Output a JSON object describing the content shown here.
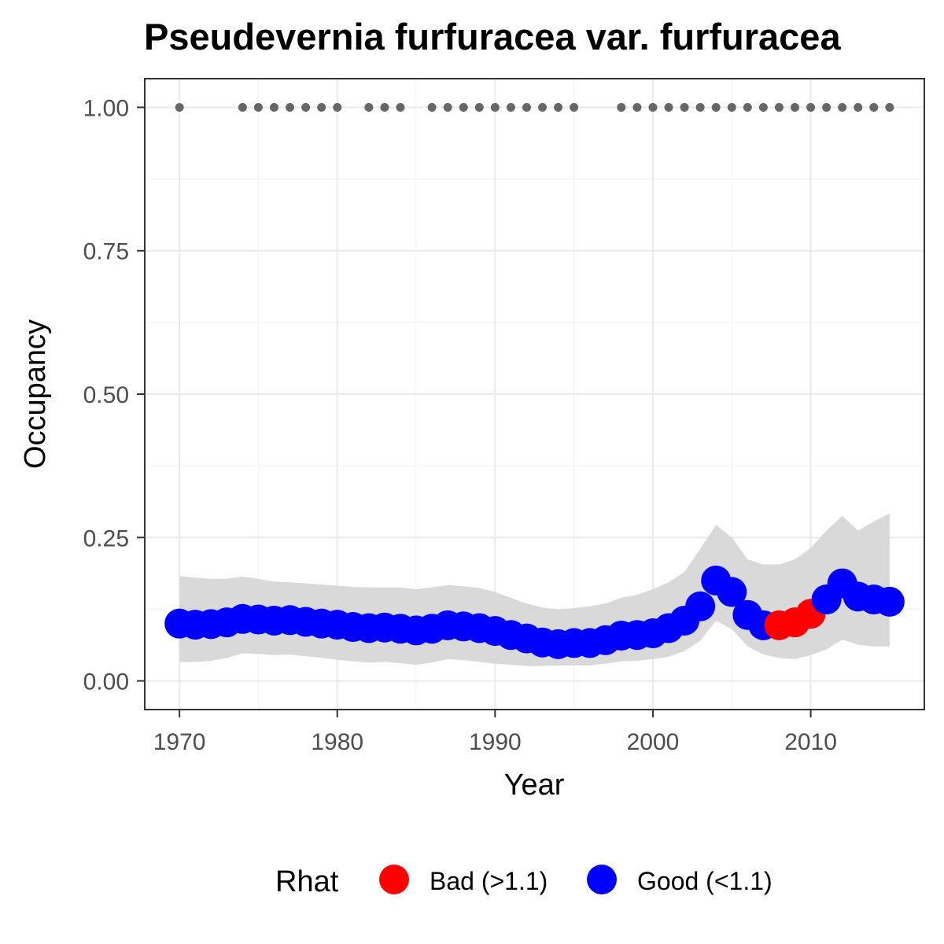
{
  "chart_data": {
    "type": "scatter",
    "title": "Pseudevernia furfuracea var. furfuracea",
    "xlabel": "Year",
    "ylabel": "Occupancy",
    "xlim": [
      1967.8,
      2017.2
    ],
    "ylim": [
      -0.05,
      1.05
    ],
    "x_ticks": [
      1970,
      1980,
      1990,
      2000,
      2010
    ],
    "y_ticks": [
      0.0,
      0.25,
      0.5,
      0.75,
      1.0
    ],
    "y_tick_labels": [
      "0.00",
      "0.25",
      "0.50",
      "0.75",
      "1.00"
    ],
    "grid": true,
    "legend": {
      "title": "Rhat",
      "position": "bottom",
      "items": [
        {
          "label": "Bad (>1.1)",
          "color": "#ff0000"
        },
        {
          "label": "Good (<1.1)",
          "color": "#0000ff"
        }
      ]
    },
    "series": [
      {
        "name": "Occupancy",
        "x": [
          1970,
          1971,
          1972,
          1973,
          1974,
          1975,
          1976,
          1977,
          1978,
          1979,
          1980,
          1981,
          1982,
          1983,
          1984,
          1985,
          1986,
          1987,
          1988,
          1989,
          1990,
          1991,
          1992,
          1993,
          1994,
          1995,
          1996,
          1997,
          1998,
          1999,
          2000,
          2001,
          2002,
          2003,
          2004,
          2005,
          2006,
          2007,
          2008,
          2009,
          2010,
          2011,
          2012,
          2013,
          2014,
          2015
        ],
        "y": [
          0.1,
          0.098,
          0.099,
          0.102,
          0.108,
          0.107,
          0.105,
          0.106,
          0.103,
          0.1,
          0.098,
          0.094,
          0.092,
          0.093,
          0.091,
          0.088,
          0.091,
          0.097,
          0.095,
          0.092,
          0.087,
          0.08,
          0.074,
          0.067,
          0.064,
          0.066,
          0.066,
          0.071,
          0.079,
          0.08,
          0.083,
          0.092,
          0.105,
          0.13,
          0.175,
          0.155,
          0.115,
          0.097,
          0.097,
          0.102,
          0.117,
          0.142,
          0.17,
          0.147,
          0.142,
          0.138
        ],
        "lower": [
          0.033,
          0.033,
          0.035,
          0.04,
          0.048,
          0.047,
          0.045,
          0.046,
          0.043,
          0.04,
          0.037,
          0.034,
          0.032,
          0.033,
          0.031,
          0.028,
          0.032,
          0.038,
          0.036,
          0.033,
          0.03,
          0.028,
          0.026,
          0.026,
          0.027,
          0.027,
          0.027,
          0.03,
          0.034,
          0.035,
          0.038,
          0.042,
          0.052,
          0.07,
          0.105,
          0.09,
          0.06,
          0.046,
          0.04,
          0.038,
          0.045,
          0.055,
          0.072,
          0.063,
          0.06,
          0.06
        ],
        "upper": [
          0.183,
          0.18,
          0.178,
          0.178,
          0.182,
          0.178,
          0.173,
          0.172,
          0.17,
          0.168,
          0.166,
          0.164,
          0.163,
          0.163,
          0.163,
          0.16,
          0.163,
          0.167,
          0.165,
          0.162,
          0.155,
          0.145,
          0.135,
          0.128,
          0.125,
          0.127,
          0.13,
          0.135,
          0.145,
          0.15,
          0.16,
          0.172,
          0.19,
          0.23,
          0.272,
          0.25,
          0.212,
          0.203,
          0.203,
          0.212,
          0.232,
          0.262,
          0.288,
          0.262,
          0.278,
          0.292
        ],
        "rhat": [
          "Good",
          "Good",
          "Good",
          "Good",
          "Good",
          "Good",
          "Good",
          "Good",
          "Good",
          "Good",
          "Good",
          "Good",
          "Good",
          "Good",
          "Good",
          "Good",
          "Good",
          "Good",
          "Good",
          "Good",
          "Good",
          "Good",
          "Good",
          "Good",
          "Good",
          "Good",
          "Good",
          "Good",
          "Good",
          "Good",
          "Good",
          "Good",
          "Good",
          "Good",
          "Good",
          "Good",
          "Good",
          "Good",
          "Bad",
          "Bad",
          "Bad",
          "Good",
          "Good",
          "Good",
          "Good",
          "Good"
        ]
      },
      {
        "name": "Records",
        "y": 1.0,
        "x": [
          1970,
          1974,
          1975,
          1976,
          1977,
          1978,
          1979,
          1980,
          1982,
          1983,
          1984,
          1986,
          1987,
          1988,
          1989,
          1990,
          1991,
          1992,
          1993,
          1994,
          1995,
          1998,
          1999,
          2000,
          2001,
          2002,
          2003,
          2004,
          2005,
          2006,
          2007,
          2008,
          2009,
          2010,
          2011,
          2012,
          2013,
          2014,
          2015
        ]
      }
    ]
  },
  "colors": {
    "panel_border": "#333333",
    "grid_major": "#ebebeb",
    "grid_minor": "#f4f4f4",
    "ribbon": "#d9d9d9",
    "record_point": "#666666",
    "good": "#0000ff",
    "bad": "#ff0000"
  }
}
